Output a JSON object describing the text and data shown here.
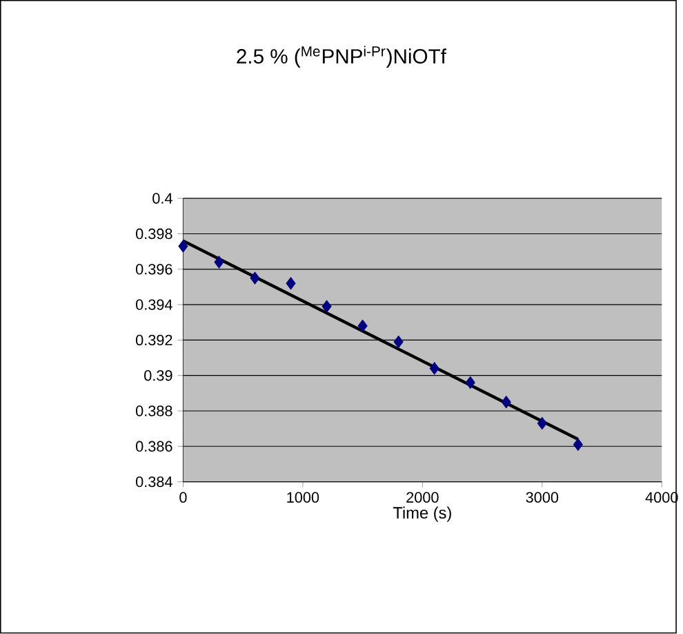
{
  "chart_data": {
    "type": "scatter",
    "title": "2.5 % ($^{Me}$PNP$^{i-Pr}$)NiOTf",
    "xlabel": "Time (s)",
    "x": [
      0,
      300,
      600,
      900,
      1200,
      1500,
      1800,
      2100,
      2400,
      2700,
      3000,
      3300
    ],
    "series": [
      {
        "type": "scatter",
        "color": "#000080",
        "marker": "diamond",
        "values": [
          0.3973,
          0.3964,
          0.3955,
          0.3952,
          0.3939,
          0.3928,
          0.3919,
          0.3904,
          0.3896,
          0.3885,
          0.3873,
          0.3861
        ]
      },
      {
        "type": "line",
        "color": "#000000",
        "marker": "none",
        "x": [
          0,
          3300
        ],
        "values": [
          0.3976,
          0.3864
        ]
      }
    ],
    "xlim": [
      0,
      4000
    ],
    "xticks": [
      0,
      1000,
      2000,
      3000,
      4000
    ],
    "ylim": [
      0.384,
      0.4
    ],
    "yticks": [
      0.384,
      0.386,
      0.388,
      0.39,
      0.392,
      0.394,
      0.396,
      0.398,
      0.4
    ],
    "grid": "y"
  }
}
